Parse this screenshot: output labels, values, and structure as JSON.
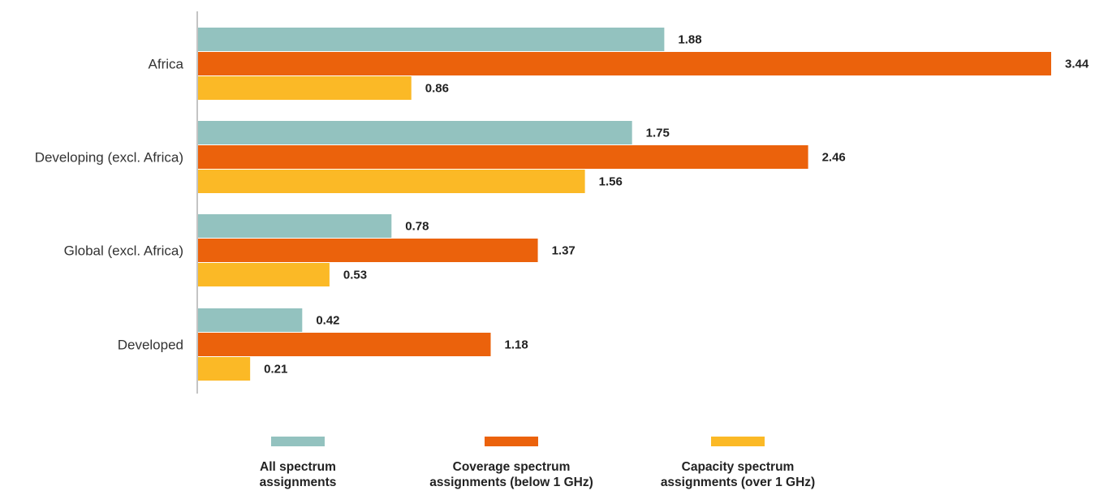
{
  "chart_data": {
    "type": "bar",
    "orientation": "horizontal",
    "categories": [
      "Africa",
      "Developing (excl. Africa)",
      "Global (excl. Africa)",
      "Developed"
    ],
    "series": [
      {
        "name": "All spectrum assignments",
        "color": "#93c2bf",
        "values": [
          1.88,
          1.75,
          0.78,
          0.42
        ]
      },
      {
        "name": "Coverage spectrum assignments (below 1 GHz)",
        "color": "#eb620c",
        "values": [
          3.44,
          2.46,
          1.37,
          1.18
        ]
      },
      {
        "name": "Capacity spectrum assignments (over 1 GHz)",
        "color": "#fbb926",
        "values": [
          0.86,
          1.56,
          0.53,
          0.21
        ]
      }
    ],
    "value_labels": [
      [
        "1.88",
        "1.75",
        "0.78",
        "0.42"
      ],
      [
        "3.44",
        "2.46",
        "1.37",
        "1.18"
      ],
      [
        "0.86",
        "1.56",
        "0.53",
        "0.21"
      ]
    ],
    "legend_position": "bottom",
    "grid": false,
    "xlim": [
      0,
      3.5
    ]
  },
  "legend": [
    {
      "line1": "All spectrum",
      "line2": "assignments",
      "color": "#93c2bf"
    },
    {
      "line1": "Coverage spectrum",
      "line2": "assignments (below 1 GHz)",
      "color": "#eb620c"
    },
    {
      "line1": "Capacity spectrum",
      "line2": "assignments (over 1 GHz)",
      "color": "#fbb926"
    }
  ]
}
